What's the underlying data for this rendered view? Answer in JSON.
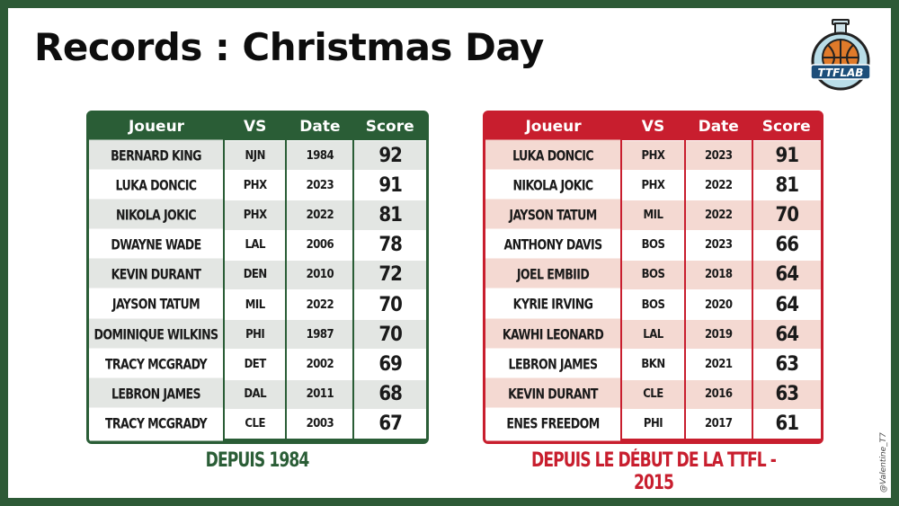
{
  "title": "Records : Christmas Day",
  "logo": {
    "text": "TTFLAB",
    "icon": "basketball-flask-logo"
  },
  "colors": {
    "green": "#2a5d36",
    "red": "#c81e2e",
    "frame": "#2d5a36"
  },
  "table_green": {
    "headers": [
      "Joueur",
      "VS",
      "Date",
      "Score"
    ],
    "rows": [
      [
        "BERNARD KING",
        "NJN",
        "1984",
        "92"
      ],
      [
        "LUKA DONCIC",
        "PHX",
        "2023",
        "91"
      ],
      [
        "NIKOLA JOKIC",
        "PHX",
        "2022",
        "81"
      ],
      [
        "DWAYNE WADE",
        "LAL",
        "2006",
        "78"
      ],
      [
        "KEVIN DURANT",
        "DEN",
        "2010",
        "72"
      ],
      [
        "JAYSON TATUM",
        "MIL",
        "2022",
        "70"
      ],
      [
        "DOMINIQUE WILKINS",
        "PHI",
        "1987",
        "70"
      ],
      [
        "TRACY MCGRADY",
        "DET",
        "2002",
        "69"
      ],
      [
        "LEBRON JAMES",
        "DAL",
        "2011",
        "68"
      ],
      [
        "TRACY MCGRADY",
        "CLE",
        "2003",
        "67"
      ]
    ],
    "caption": "DEPUIS 1984"
  },
  "table_red": {
    "headers": [
      "Joueur",
      "VS",
      "Date",
      "Score"
    ],
    "rows": [
      [
        "LUKA DONCIC",
        "PHX",
        "2023",
        "91"
      ],
      [
        "NIKOLA JOKIC",
        "PHX",
        "2022",
        "81"
      ],
      [
        "JAYSON TATUM",
        "MIL",
        "2022",
        "70"
      ],
      [
        "ANTHONY DAVIS",
        "BOS",
        "2023",
        "66"
      ],
      [
        "JOEL EMBIID",
        "BOS",
        "2018",
        "64"
      ],
      [
        "KYRIE IRVING",
        "BOS",
        "2020",
        "64"
      ],
      [
        "KAWHI LEONARD",
        "LAL",
        "2019",
        "64"
      ],
      [
        "LEBRON JAMES",
        "BKN",
        "2021",
        "63"
      ],
      [
        "KEVIN DURANT",
        "CLE",
        "2016",
        "63"
      ],
      [
        "ENES FREEDOM",
        "PHI",
        "2017",
        "61"
      ]
    ],
    "caption": "DEPUIS LE DÉBUT DE LA TTFL - 2015"
  },
  "watermark": "@Valentine_T7"
}
